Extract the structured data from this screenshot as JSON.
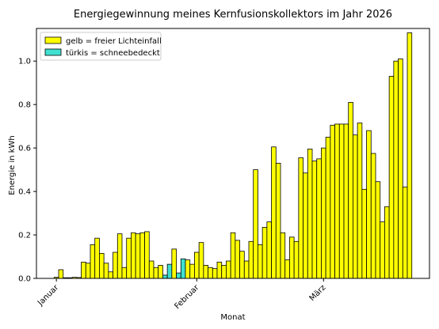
{
  "chart_data": {
    "type": "bar",
    "title": "Energiegewinnung meines Kernfusionskollektors im Jahr 2026",
    "xlabel": "Monat",
    "ylabel": "Energie in kWh",
    "ylim": [
      0,
      1.15
    ],
    "yticks": [
      "0.0",
      "0.2",
      "0.4",
      "0.6",
      "0.8",
      "1.0"
    ],
    "xticks": [
      {
        "label": "Januar",
        "day": 1
      },
      {
        "label": "Februar",
        "day": 32
      },
      {
        "label": "März",
        "day": 60
      }
    ],
    "grid": false,
    "legend_position": "top-left",
    "legend": [
      {
        "label": "gelb = freier Lichteinfall",
        "color": "#ffff00"
      },
      {
        "label": "türkis = schneebedeckt",
        "color": "#40e0d0"
      }
    ],
    "colors": {
      "sunny": "#ffff00",
      "snow": "#40e0d0",
      "edge": "#000000"
    },
    "series": [
      {
        "x_start": 1,
        "x_unit": "day of year",
        "values": [
          0.005,
          0.04,
          0.003,
          0.003,
          0.005,
          0.004,
          0.075,
          0.07,
          0.155,
          0.185,
          0.115,
          0.07,
          0.03,
          0.12,
          0.205,
          0.05,
          0.185,
          0.21,
          0.205,
          0.21,
          0.215,
          0.08,
          0.05,
          0.06,
          0.015,
          0.065,
          0.135,
          0.025,
          0.09,
          0.085,
          0.065,
          0.12,
          0.165,
          0.06,
          0.05,
          0.045,
          0.075,
          0.06,
          0.08,
          0.21,
          0.175,
          0.125,
          0.08,
          0.17,
          0.5,
          0.155,
          0.235,
          0.26,
          0.605,
          0.53,
          0.21,
          0.085,
          0.19,
          0.17,
          0.555,
          0.485,
          0.595,
          0.54,
          0.55,
          0.6,
          0.65,
          0.705,
          0.71,
          0.71,
          0.71,
          0.81,
          0.66,
          0.715,
          0.41,
          0.68,
          0.575,
          0.445,
          0.26,
          0.33,
          0.93,
          1.0,
          1.01,
          0.42,
          1.13
        ],
        "snow_days": [
          25,
          26,
          28,
          29
        ]
      }
    ]
  }
}
